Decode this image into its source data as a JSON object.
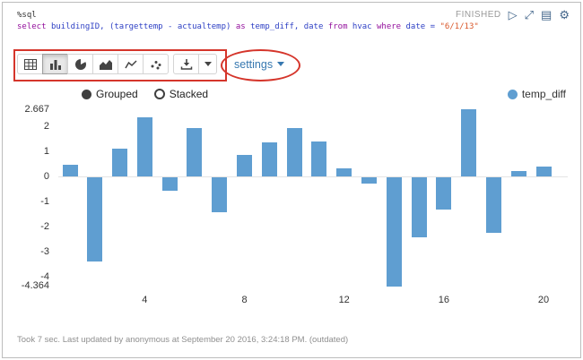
{
  "colors": {
    "bar": "#5f9ed1",
    "annotation": "#d5352b",
    "link": "#3778b0",
    "keyword": "#930f9c",
    "identifier": "#2d3fc4",
    "string": "#d9582a"
  },
  "paragraph": {
    "interpreter": "%sql",
    "status": "FINISHED",
    "footer": "Took 7 sec. Last updated by anonymous at September 20 2016, 3:24:18 PM. (outdated)"
  },
  "sql": {
    "tokens": [
      {
        "type": "keyword",
        "text": "select "
      },
      {
        "type": "identifier",
        "text": "buildingID, (targettemp - actualtemp) "
      },
      {
        "type": "keyword",
        "text": "as "
      },
      {
        "type": "identifier",
        "text": "temp_diff, date "
      },
      {
        "type": "keyword",
        "text": "from "
      },
      {
        "type": "identifier",
        "text": "hvac "
      },
      {
        "type": "keyword",
        "text": "where "
      },
      {
        "type": "identifier",
        "text": "date = "
      },
      {
        "type": "string",
        "text": "\"6/1/13\""
      }
    ]
  },
  "header_icons": [
    "run",
    "expand",
    "editor-toggle",
    "settings-gear"
  ],
  "toolbar": {
    "chart_buttons": [
      "table",
      "bar-chart",
      "pie-chart",
      "area-chart",
      "line-chart",
      "scatter-chart"
    ],
    "active_button": "bar-chart",
    "download_button": "download",
    "settings_label": "settings"
  },
  "chart_controls": {
    "options": [
      "Grouped",
      "Stacked"
    ],
    "selected": "Grouped"
  },
  "legend": [
    {
      "label": "temp_diff",
      "color": "#5f9ed1"
    }
  ],
  "chart_data": {
    "type": "bar",
    "title": "",
    "xlabel": "",
    "ylabel": "",
    "grid": false,
    "legend_position": "top-right",
    "grouping": "Grouped",
    "x": [
      1,
      2,
      3,
      4,
      5,
      6,
      7,
      8,
      9,
      10,
      11,
      12,
      13,
      14,
      15,
      16,
      17,
      18,
      19,
      20
    ],
    "x_ticks": [
      4,
      8,
      12,
      16,
      20
    ],
    "y_ticks": [
      2.667,
      2,
      1,
      0,
      -1,
      -2,
      -3,
      -4,
      -4.364
    ],
    "ylim": [
      -4.364,
      2.667
    ],
    "series": [
      {
        "name": "temp_diff",
        "values": [
          0.46,
          -3.36,
          1.1,
          2.35,
          -0.55,
          1.93,
          -1.4,
          0.85,
          1.35,
          1.93,
          1.4,
          0.3,
          -0.25,
          -4.364,
          -2.4,
          -1.3,
          2.667,
          -2.2,
          0.2,
          0.4
        ]
      }
    ]
  }
}
